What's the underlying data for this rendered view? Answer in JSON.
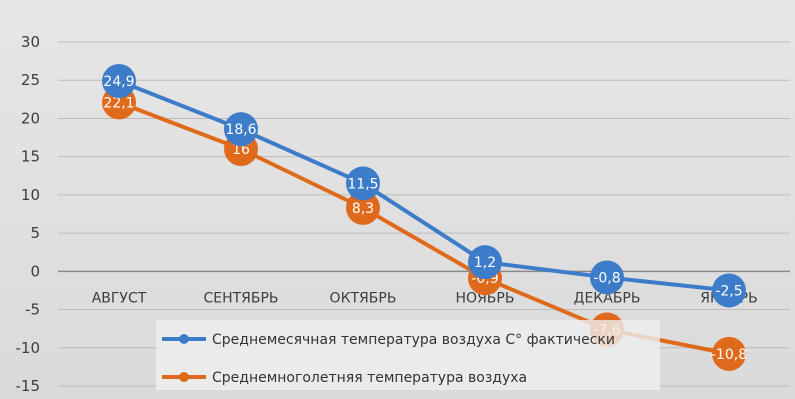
{
  "chart_data": {
    "type": "line",
    "title": "",
    "xlabel": "",
    "ylabel": "",
    "ylim": [
      -15,
      30
    ],
    "yticks": [
      30,
      25,
      20,
      15,
      10,
      5,
      0,
      -5,
      -10,
      -15
    ],
    "categories": [
      "АВГУСТ",
      "СЕНТЯБРЬ",
      "ОКТЯБРЬ",
      "НОЯБРЬ",
      "ДЕКАБРЬ",
      "ЯНВАРЬ"
    ],
    "grid": true,
    "legend_position": "bottom",
    "series": [
      {
        "name": "Среднемесячная температура воздуха С° фактически",
        "color": "#3d7cc9",
        "values": [
          24.9,
          18.6,
          11.5,
          1.2,
          -0.8,
          -2.5
        ],
        "labels": [
          "24,9",
          "18,6",
          "11,5",
          "1,2",
          "-0,8",
          "-2,5"
        ]
      },
      {
        "name": "Среднемноголетняя температура воздуха",
        "color": "#e06a1c",
        "values": [
          22.1,
          16,
          8.3,
          -0.9,
          -7.6,
          -10.8
        ],
        "labels": [
          "22,1",
          "16",
          "8,3",
          "-0,9",
          "-7,6",
          "-10,8"
        ]
      }
    ]
  }
}
